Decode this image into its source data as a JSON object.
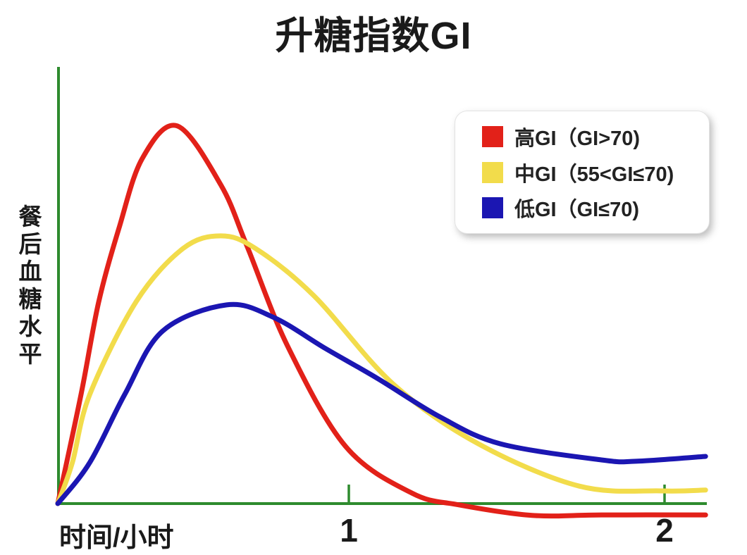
{
  "title": "升糖指数GI",
  "colors": {
    "axis": "#2e8b2e",
    "high_gi": "#e22119",
    "mid_gi": "#f2dc4b",
    "low_gi": "#1b16b2",
    "text": "#1a1a1a",
    "legend_border": "#e3e3e3"
  },
  "legend": {
    "items": [
      {
        "label": "高GI（GI>70)",
        "color": "#e22119"
      },
      {
        "label": "中GI（55<GI≤70)",
        "color": "#f2dc4b"
      },
      {
        "label": "低GI（GI≤70)",
        "color": "#1b16b2"
      }
    ]
  },
  "chart_data": {
    "type": "line",
    "title": "升糖指数GI",
    "xlabel": "时间/小时",
    "ylabel": "餐后血糖水平",
    "x_ticks": [
      {
        "label": "1",
        "hour": 1
      },
      {
        "label": "2",
        "hour": 2
      }
    ],
    "x_range_hours": [
      0,
      2.13
    ],
    "ylim": [
      0,
      100
    ],
    "y_unit": "relative postprandial blood glucose level (no numeric scale shown)",
    "grid": false,
    "legend_position": "upper right",
    "series": [
      {
        "name": "高GI（GI>70)",
        "color": "#e22119",
        "points": [
          [
            0,
            0
          ],
          [
            0.08,
            25
          ],
          [
            0.14,
            46
          ],
          [
            0.21,
            63
          ],
          [
            0.29,
            79
          ],
          [
            0.41,
            86.5
          ],
          [
            0.56,
            73
          ],
          [
            0.65,
            59
          ],
          [
            0.79,
            36
          ],
          [
            0.99,
            13
          ],
          [
            1.2,
            2.4
          ],
          [
            1.35,
            -0.3
          ],
          [
            1.58,
            -2.7
          ],
          [
            1.8,
            -2.6
          ],
          [
            2.13,
            -2.6
          ]
        ]
      },
      {
        "name": "中GI（55<GI≤70)",
        "color": "#f2dc4b",
        "points": [
          [
            0,
            0
          ],
          [
            0.05,
            9.4
          ],
          [
            0.11,
            25
          ],
          [
            0.27,
            46.3
          ],
          [
            0.43,
            58.4
          ],
          [
            0.56,
            61.3
          ],
          [
            0.68,
            58.4
          ],
          [
            0.88,
            47.6
          ],
          [
            1.14,
            27.4
          ],
          [
            1.41,
            13.7
          ],
          [
            1.73,
            4.0
          ],
          [
            1.99,
            2.9
          ],
          [
            2.13,
            3.1
          ]
        ]
      },
      {
        "name": "低GI（GI≤70)",
        "color": "#1b16b2",
        "points": [
          [
            0,
            0
          ],
          [
            0.11,
            9.4
          ],
          [
            0.23,
            25
          ],
          [
            0.36,
            39.5
          ],
          [
            0.58,
            45.5
          ],
          [
            0.74,
            42.7
          ],
          [
            0.92,
            35.5
          ],
          [
            1.09,
            28.7
          ],
          [
            1.29,
            19.8
          ],
          [
            1.48,
            13.7
          ],
          [
            1.8,
            10.0
          ],
          [
            1.91,
            9.7
          ],
          [
            2.13,
            10.8
          ]
        ]
      }
    ]
  }
}
